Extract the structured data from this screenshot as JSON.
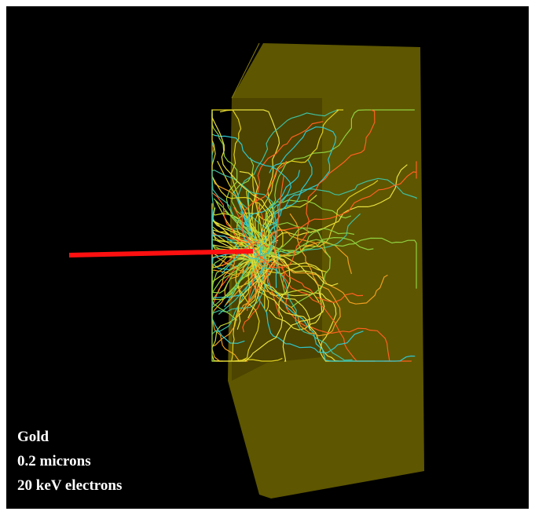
{
  "labels": [
    "Gold",
    "0.2 microns",
    "20 keV electrons"
  ]
}
